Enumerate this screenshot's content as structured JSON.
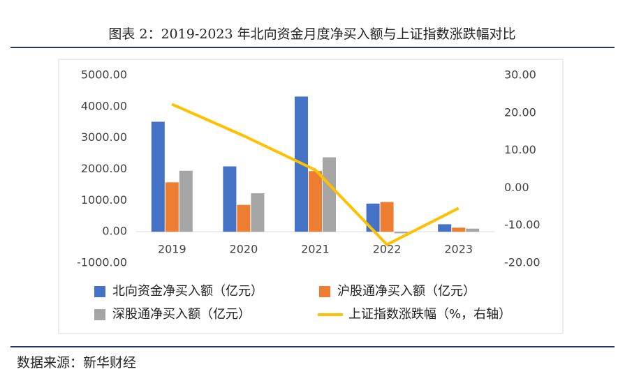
{
  "chart_data": {
    "type": "bar",
    "title": "图表 2：2019-2023 年北向资金月度净买入额与上证指数涨跌幅对比",
    "source": "数据来源：新华财经",
    "categories": [
      "2019",
      "2020",
      "2021",
      "2022",
      "2023"
    ],
    "series": [
      {
        "name": "北向资金净买入额（亿元）",
        "color": "#4472c4",
        "values": [
          3517,
          2089,
          4322,
          900,
          240
        ]
      },
      {
        "name": "沪股通净买入额（亿元）",
        "color": "#ed7d31",
        "values": [
          1580,
          860,
          1940,
          950,
          130
        ]
      },
      {
        "name": "深股通净买入额（亿元）",
        "color": "#a5a5a5",
        "values": [
          1950,
          1230,
          2380,
          -50,
          100
        ]
      },
      {
        "name": "上证指数涨跌幅（%，右轴）",
        "color": "#ffc000",
        "type": "line",
        "axis": "y2",
        "values": [
          22.3,
          13.9,
          4.8,
          -15.1,
          -5.4
        ]
      }
    ],
    "ylim": [
      -1000,
      5000
    ],
    "yticks": [
      {
        "value": -1000,
        "label": "-1000.00"
      },
      {
        "value": 0,
        "label": "0.00"
      },
      {
        "value": 1000,
        "label": "1000.00"
      },
      {
        "value": 2000,
        "label": "2000.00"
      },
      {
        "value": 3000,
        "label": "3000.00"
      },
      {
        "value": 4000,
        "label": "4000.00"
      },
      {
        "value": 5000,
        "label": "5000.00"
      }
    ],
    "y2lim": [
      -20,
      30
    ],
    "y2ticks": [
      {
        "value": -20,
        "label": "-20.00"
      },
      {
        "value": -10,
        "label": "-10.00"
      },
      {
        "value": 0,
        "label": "0.00"
      },
      {
        "value": 10,
        "label": "10.00"
      },
      {
        "value": 20,
        "label": "20.00"
      },
      {
        "value": 30,
        "label": "30.00"
      }
    ]
  }
}
